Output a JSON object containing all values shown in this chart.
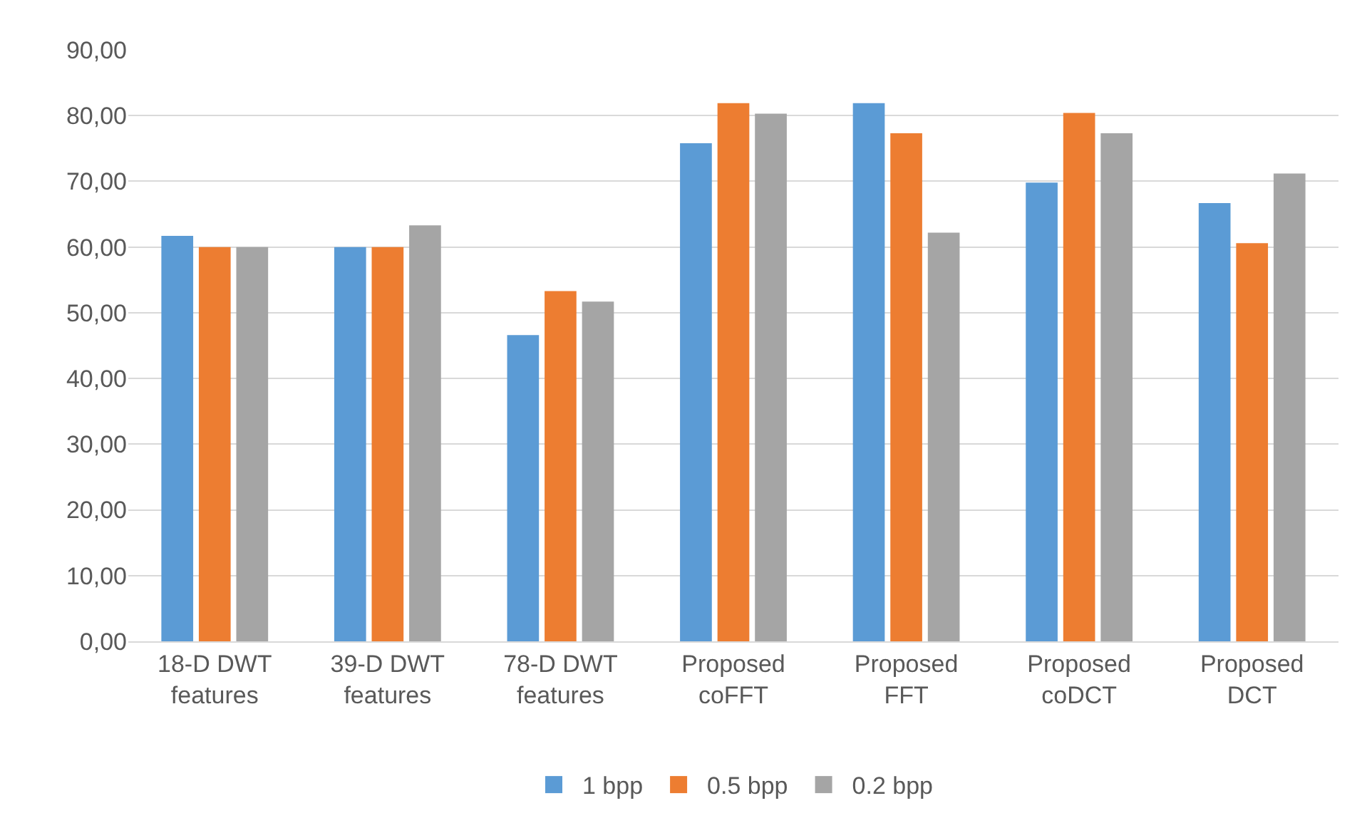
{
  "chart_data": {
    "type": "bar",
    "categories": [
      "18-D DWT features",
      "39-D DWT features",
      "78-D DWT features",
      "Proposed coFFT",
      "Proposed FFT",
      "Proposed coDCT",
      "Proposed DCT"
    ],
    "series": [
      {
        "name": "1 bpp",
        "color": "#5b9bd5",
        "values": [
          61.7,
          60.0,
          46.6,
          75.8,
          81.9,
          69.8,
          66.7
        ]
      },
      {
        "name": "0.5 bpp",
        "color": "#ed7d31",
        "values": [
          60.0,
          60.0,
          53.3,
          81.9,
          77.3,
          80.4,
          60.6
        ]
      },
      {
        "name": "0.2 bpp",
        "color": "#a5a5a5",
        "values": [
          60.0,
          63.3,
          51.7,
          80.3,
          62.2,
          77.3,
          71.2
        ]
      }
    ],
    "ylim": [
      0,
      90
    ],
    "yticks": [
      {
        "value": 0,
        "label": "0,00"
      },
      {
        "value": 10,
        "label": "10,00"
      },
      {
        "value": 20,
        "label": "20,00"
      },
      {
        "value": 30,
        "label": "30,00"
      },
      {
        "value": 40,
        "label": "40,00"
      },
      {
        "value": 50,
        "label": "50,00"
      },
      {
        "value": 60,
        "label": "60,00"
      },
      {
        "value": 70,
        "label": "70,00"
      },
      {
        "value": 80,
        "label": "80,00"
      },
      {
        "value": 90,
        "label": "90,00"
      }
    ],
    "grid": "y",
    "legend": "bottom"
  }
}
